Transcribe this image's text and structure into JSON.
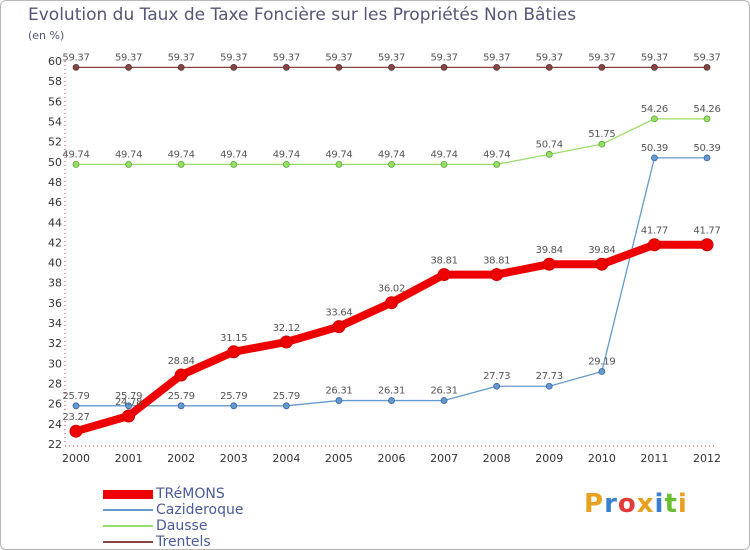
{
  "title": "Evolution du Taux de Taxe Foncière sur les Propriétés Non Bâties",
  "unit_label": "(en %)",
  "logo": {
    "text": "Proxiti",
    "letter_colors": [
      "#e8a020",
      "#3a7fd0",
      "#e03a3a",
      "#e8a020",
      "#3a7fd0",
      "#6abf30",
      "#e8a020"
    ]
  },
  "chart_data": {
    "type": "line",
    "x": [
      2000,
      2001,
      2002,
      2003,
      2004,
      2005,
      2006,
      2007,
      2008,
      2009,
      2010,
      2011,
      2012
    ],
    "ylim": [
      22,
      60
    ],
    "yticks": [
      22,
      24,
      26,
      28,
      30,
      32,
      34,
      36,
      38,
      40,
      42,
      44,
      46,
      48,
      50,
      52,
      54,
      56,
      58,
      60
    ],
    "grid": false,
    "legend_position": "bottom-left",
    "series": [
      {
        "name": "TRéMONS",
        "color": "#ee0000",
        "values": [
          23.27,
          24.78,
          28.84,
          31.15,
          32.12,
          33.64,
          36.02,
          38.81,
          38.81,
          39.84,
          39.84,
          41.77,
          41.77
        ],
        "labels": [
          "23.27",
          "24.78",
          "28.84",
          "31.15",
          "32.12",
          "33.64",
          "36.02",
          "38.81",
          "38.81",
          "39.84",
          "39.84",
          "41.77",
          "41.77"
        ]
      },
      {
        "name": "Cazideroque",
        "color": "#6699cc",
        "values": [
          25.79,
          25.79,
          25.79,
          25.79,
          25.79,
          26.31,
          26.31,
          26.31,
          27.73,
          27.73,
          29.19,
          50.39,
          50.39
        ],
        "labels": [
          "25.79",
          "25.79",
          "25.79",
          "25.79",
          "25.79",
          "26.31",
          "26.31",
          "26.31",
          "27.73",
          "27.73",
          "29.19",
          "50.39",
          "50.39"
        ]
      },
      {
        "name": "Dausse",
        "color": "#99dd66",
        "values": [
          49.74,
          49.74,
          49.74,
          49.74,
          49.74,
          49.74,
          49.74,
          49.74,
          49.74,
          50.74,
          51.75,
          54.26,
          54.26
        ],
        "labels": [
          "49.74",
          "49.74",
          "49.74",
          "49.74",
          "49.74",
          "49.74",
          "49.74",
          "49.74",
          "49.74",
          "50.74",
          "51.75",
          "54.26",
          "54.26"
        ]
      },
      {
        "name": "Trentels",
        "color": "#884444",
        "values": [
          59.37,
          59.37,
          59.37,
          59.37,
          59.37,
          59.37,
          59.37,
          59.37,
          59.37,
          59.37,
          59.37,
          59.37,
          59.37
        ],
        "labels": [
          "59.37",
          "59.37",
          "59.37",
          "59.37",
          "59.37",
          "59.37",
          "59.37",
          "59.37",
          "59.37",
          "59.37",
          "59.37",
          "59.37",
          "59.37"
        ]
      }
    ]
  }
}
